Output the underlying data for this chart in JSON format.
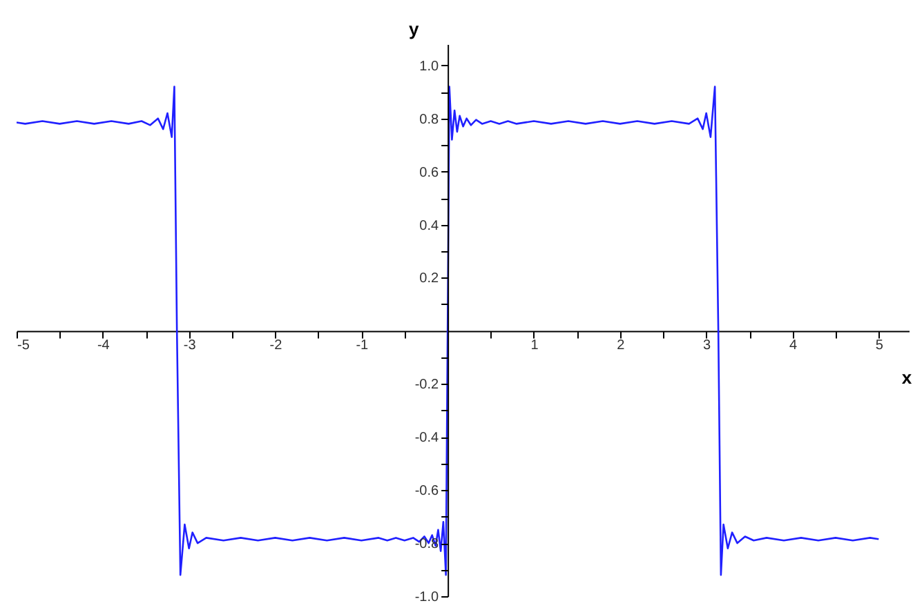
{
  "chart_data": {
    "type": "line",
    "xlabel": "x",
    "ylabel": "y",
    "xlim": [
      -5,
      5.35
    ],
    "ylim": [
      -1.0,
      1.08
    ],
    "xticks": [
      -5,
      {
        "value": -4.5,
        "label": null
      },
      -4,
      {
        "value": -3.5,
        "label": null
      },
      -3,
      {
        "value": -2.5,
        "label": null
      },
      -2,
      {
        "value": -1.5,
        "label": null
      },
      -1,
      {
        "value": -0.5,
        "label": null
      },
      {
        "value": 0.5,
        "label": null
      },
      1,
      {
        "value": 1.5,
        "label": null
      },
      2,
      {
        "value": 2.5,
        "label": null
      },
      3,
      {
        "value": 3.5,
        "label": null
      },
      4,
      {
        "value": 4.5,
        "label": null
      },
      5
    ],
    "yticks": [
      {
        "value": -1,
        "label": "-1.0"
      },
      {
        "value": -0.9,
        "label": null
      },
      {
        "value": -0.8,
        "label": "-0.8"
      },
      {
        "value": -0.7,
        "label": null
      },
      {
        "value": -0.6,
        "label": "-0.6"
      },
      {
        "value": -0.5,
        "label": null
      },
      {
        "value": -0.4,
        "label": "-0.4"
      },
      {
        "value": -0.3,
        "label": null
      },
      {
        "value": -0.2,
        "label": "-0.2"
      },
      {
        "value": -0.1,
        "label": null
      },
      {
        "value": 0.1,
        "label": null
      },
      {
        "value": 0.2,
        "label": "0.2"
      },
      {
        "value": 0.3,
        "label": null
      },
      {
        "value": 0.4,
        "label": "0.4"
      },
      {
        "value": 0.5,
        "label": null
      },
      {
        "value": 0.6,
        "label": "0.6"
      },
      {
        "value": 0.7,
        "label": null
      },
      {
        "value": 0.8,
        "label": "0.8"
      },
      {
        "value": 0.9,
        "label": null
      },
      {
        "value": 1,
        "label": "1.0"
      }
    ],
    "grid": false,
    "marker": "none",
    "line_style": "solid",
    "series": [
      {
        "color": "#2020ff",
        "x": [
          -5,
          -4.9,
          -4.7,
          -4.5,
          -4.3,
          -4.1,
          -3.9,
          -3.7,
          -3.55,
          -3.45,
          -3.36,
          -3.3,
          -3.25,
          -3.2,
          -3.17,
          -3.14,
          -3.1,
          -3.05,
          -3.0,
          -2.96,
          -2.9,
          -2.8,
          -2.6,
          -2.4,
          -2.2,
          -2.0,
          -1.8,
          -1.6,
          -1.4,
          -1.2,
          -1.0,
          -0.8,
          -0.7,
          -0.6,
          -0.5,
          -0.4,
          -0.33,
          -0.27,
          -0.22,
          -0.18,
          -0.14,
          -0.11,
          -0.08,
          -0.05,
          -0.02,
          0,
          0.02,
          0.05,
          0.08,
          0.11,
          0.14,
          0.18,
          0.22,
          0.27,
          0.33,
          0.4,
          0.5,
          0.6,
          0.7,
          0.8,
          1.0,
          1.2,
          1.4,
          1.6,
          1.8,
          2.0,
          2.2,
          2.4,
          2.6,
          2.8,
          2.9,
          2.96,
          3.0,
          3.05,
          3.1,
          3.14,
          3.17,
          3.2,
          3.25,
          3.3,
          3.36,
          3.45,
          3.55,
          3.7,
          3.9,
          4.1,
          4.3,
          4.5,
          4.7,
          4.9,
          5.0
        ],
        "values": [
          0.785,
          0.78,
          0.79,
          0.78,
          0.79,
          0.78,
          0.79,
          0.78,
          0.79,
          0.775,
          0.8,
          0.76,
          0.82,
          0.73,
          0.92,
          0,
          -0.92,
          -0.73,
          -0.82,
          -0.76,
          -0.8,
          -0.78,
          -0.79,
          -0.78,
          -0.79,
          -0.78,
          -0.79,
          -0.78,
          -0.79,
          -0.78,
          -0.79,
          -0.78,
          -0.79,
          -0.78,
          -0.79,
          -0.78,
          -0.795,
          -0.775,
          -0.8,
          -0.77,
          -0.81,
          -0.75,
          -0.83,
          -0.72,
          -0.92,
          0,
          0.92,
          0.72,
          0.83,
          0.75,
          0.81,
          0.77,
          0.8,
          0.775,
          0.795,
          0.78,
          0.79,
          0.78,
          0.79,
          0.78,
          0.79,
          0.78,
          0.79,
          0.78,
          0.79,
          0.78,
          0.79,
          0.78,
          0.79,
          0.78,
          0.8,
          0.76,
          0.82,
          0.73,
          0.92,
          0,
          -0.92,
          -0.73,
          -0.82,
          -0.76,
          -0.8,
          -0.775,
          -0.79,
          -0.78,
          -0.79,
          -0.78,
          -0.79,
          -0.78,
          -0.79,
          -0.78,
          -0.785
        ]
      }
    ]
  }
}
